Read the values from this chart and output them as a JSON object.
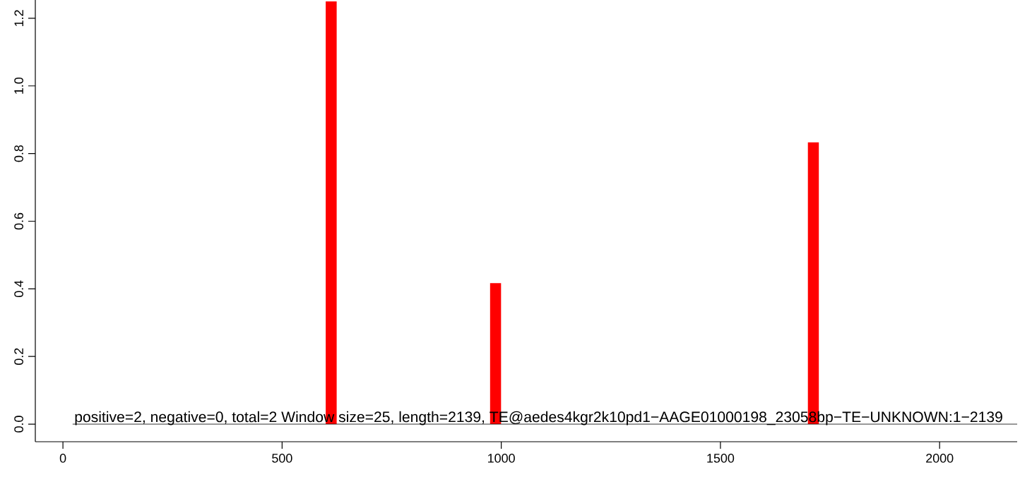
{
  "chart_data": {
    "type": "bar",
    "x": [
      612,
      987,
      1712
    ],
    "series": [
      {
        "color": "#ff0000",
        "values": [
          1.25,
          0.417,
          0.833
        ]
      }
    ],
    "xlim": [
      -63,
      2177
    ],
    "ylim": [
      -0.052,
      1.254
    ],
    "xticks": [
      0,
      500,
      1000,
      1500,
      2000
    ],
    "yticks": [
      {
        "value": 0,
        "label": "0.0"
      },
      0.2,
      0.4,
      0.6,
      0.8,
      {
        "value": 1,
        "label": "1.0"
      },
      1.2
    ],
    "ref_lines": [
      {
        "axis": "y",
        "value": 0,
        "color": "#000000"
      }
    ],
    "annotations": [
      "positive=2, negative=0, total=2  Window size=25, length=2139, TE@aedes4kgr2k10pd1−AAGE01000198_23058bp−TE−UNKNOWN:1−2139"
    ]
  }
}
